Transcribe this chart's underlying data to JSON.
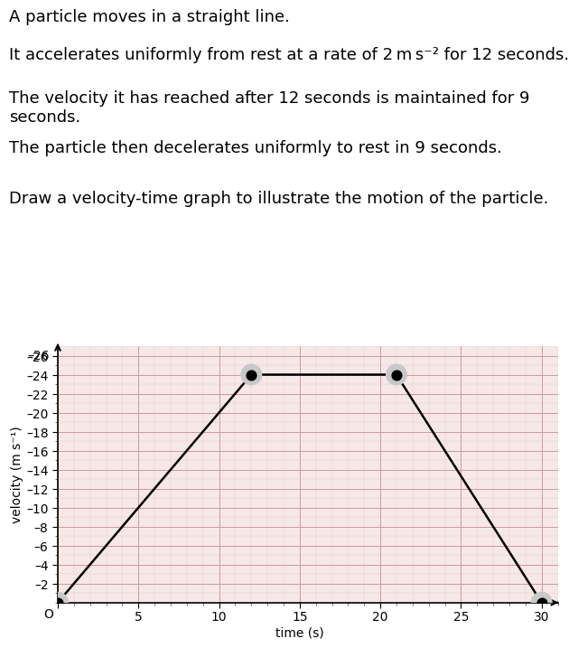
{
  "t_points": [
    0,
    12,
    21,
    30
  ],
  "v_points": [
    0,
    24,
    24,
    0
  ],
  "xlim": [
    0,
    31
  ],
  "ylim": [
    0,
    27
  ],
  "xticks": [
    0,
    5,
    10,
    15,
    20,
    25,
    30
  ],
  "yticks": [
    2,
    4,
    6,
    8,
    10,
    12,
    14,
    16,
    18,
    20,
    22,
    24,
    26
  ],
  "line_color": "#000000",
  "dot_color": "#000000",
  "dot_size": 60,
  "dot_halo_size": 300,
  "dot_halo_color": "#c8c8c8",
  "dot_marker": "o",
  "grid_color": "#cc9999",
  "grid_minor_color": "#e8cccc",
  "bg_color": "#ffffff",
  "plot_bg_color": "#f7e8e8",
  "line_width": 1.8,
  "arrow_color": "#000000",
  "text_color": "#000000",
  "axis_label_fontsize": 10,
  "tick_fontsize": 10,
  "ylabel_text": "velocity (m s⁻¹)",
  "xlabel_text": "",
  "text_lines": [
    "A particle moves in a straight line.",
    "It accelerates uniformly from rest at a rate of 2 m s⁻² for 12 seconds.",
    "The velocity it has reached after 12 seconds is maintained for 9\nseconds.",
    "The particle then decelerates uniformly to rest in 9 seconds.",
    "Draw a velocity-time graph to illustrate the motion of the particle."
  ],
  "text_fontsizes": [
    13,
    13,
    13,
    13,
    13
  ],
  "text_bold": [
    false,
    false,
    false,
    false,
    false
  ]
}
